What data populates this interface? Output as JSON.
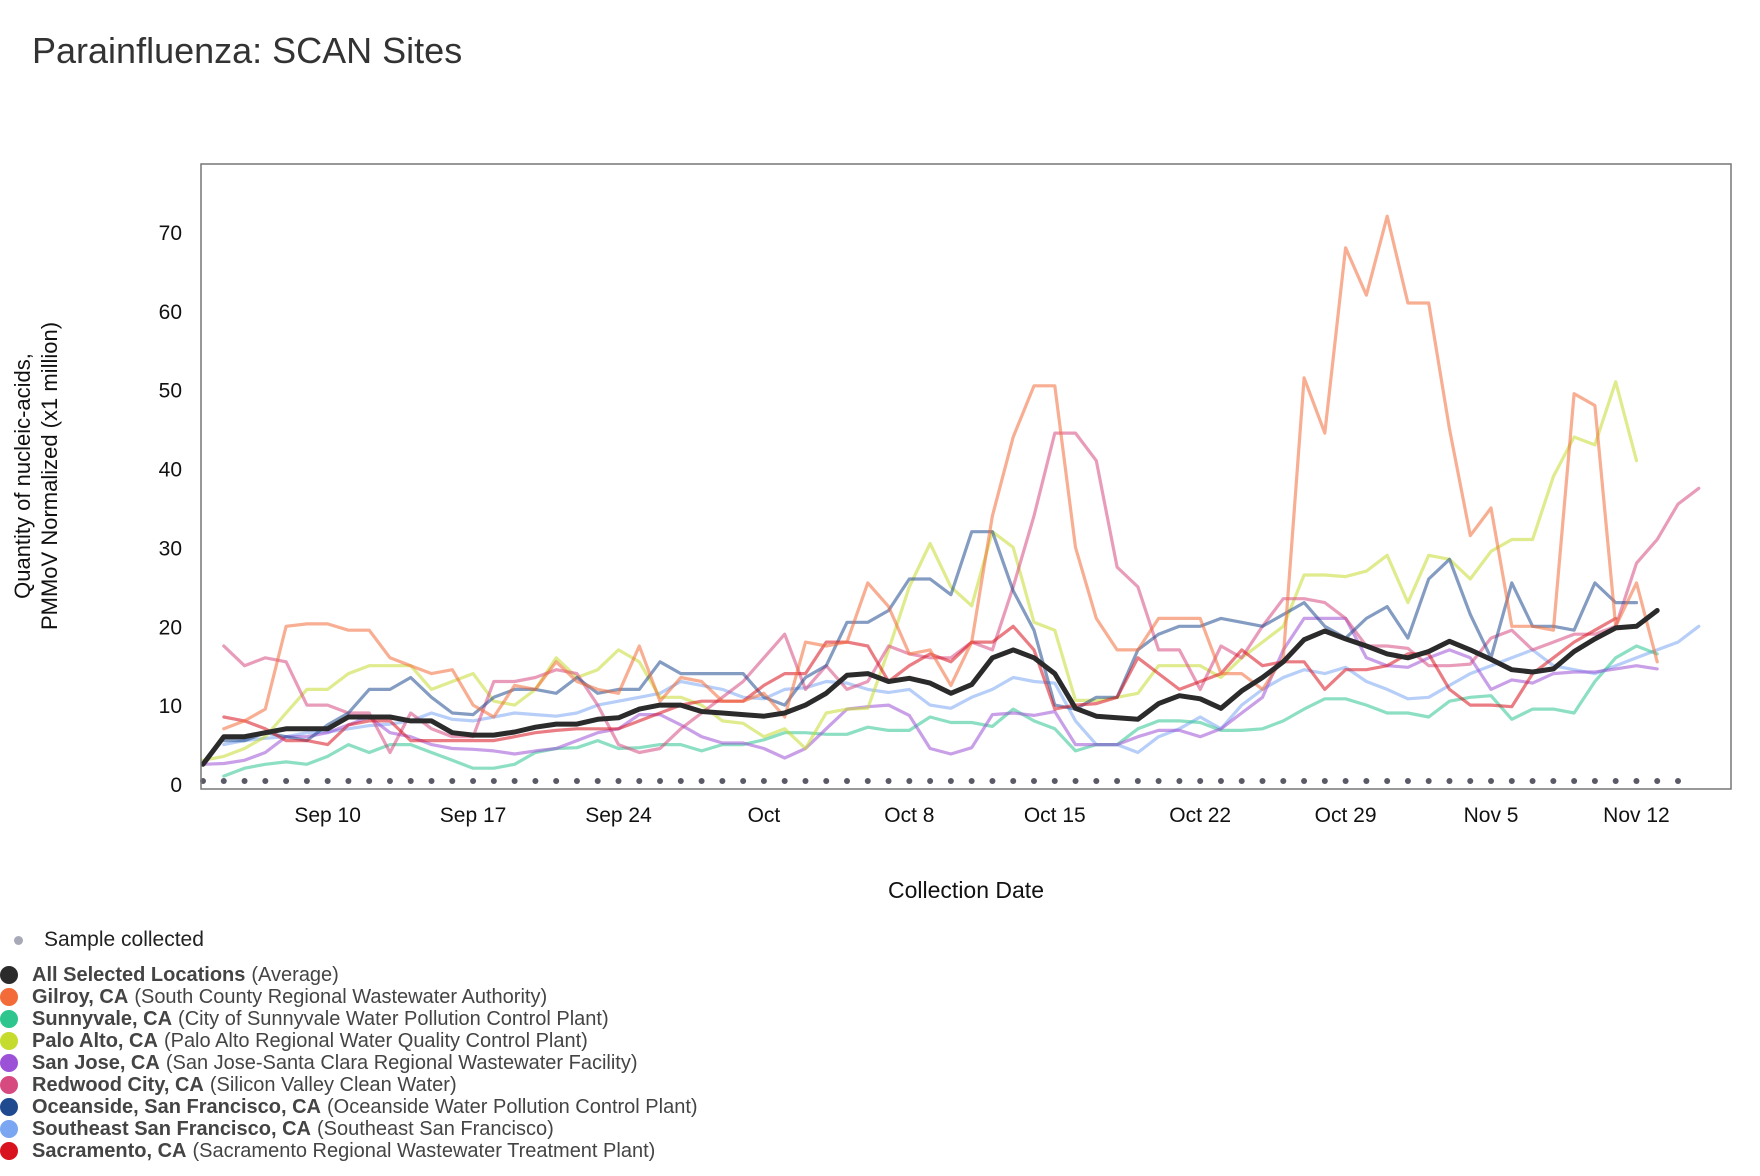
{
  "title": "Parainfluenza: SCAN Sites",
  "sample_legend": "Sample collected",
  "colors": {
    "avg": "#2b2b2b",
    "gilroy": "#f26b38",
    "sunnyvale": "#2ec58f",
    "paloalto": "#c5db2e",
    "sanjose": "#9c52d6",
    "redwood": "#d64a80",
    "oceanside": "#1f4a8f",
    "sesf": "#7aa6f2",
    "sacramento": "#d8121e",
    "sample": "#5a5a66"
  },
  "legend": [
    {
      "key": "avg",
      "name": "All Selected Locations",
      "sub": "(Average)"
    },
    {
      "key": "gilroy",
      "name": "Gilroy, CA",
      "sub": "(South County Regional Wastewater Authority)"
    },
    {
      "key": "sunnyvale",
      "name": "Sunnyvale, CA",
      "sub": "(City of Sunnyvale Water Pollution Control Plant)"
    },
    {
      "key": "paloalto",
      "name": "Palo Alto, CA",
      "sub": "(Palo Alto Regional Water Quality Control Plant)"
    },
    {
      "key": "sanjose",
      "name": "San Jose, CA",
      "sub": "(San Jose-Santa Clara Regional Wastewater Facility)"
    },
    {
      "key": "redwood",
      "name": "Redwood City, CA",
      "sub": "(Silicon Valley Clean Water)"
    },
    {
      "key": "oceanside",
      "name": "Oceanside, San Francisco, CA",
      "sub": "(Oceanside Water Pollution Control Plant)"
    },
    {
      "key": "sesf",
      "name": "Southeast San Francisco, CA",
      "sub": "(Southeast San Francisco)"
    },
    {
      "key": "sacramento",
      "name": "Sacramento, CA",
      "sub": "(Sacramento Regional Wastewater Treatment Plant)"
    }
  ],
  "chart_data": {
    "type": "line",
    "title": "Parainfluenza: SCAN Sites",
    "xlabel": "Collection Date",
    "ylabel_lines": [
      "Quantity of nucleic-acids,",
      "PMMoV Normalized (x1 million)"
    ],
    "x_start_date": "Sep 4",
    "xlim_days": [
      0,
      72
    ],
    "ylim": [
      0,
      78
    ],
    "yticks": [
      0,
      10,
      20,
      30,
      40,
      50,
      60,
      70
    ],
    "xticks": [
      {
        "day": 6,
        "label": "Sep 10"
      },
      {
        "day": 13,
        "label": "Sep 17"
      },
      {
        "day": 20,
        "label": "Sep 24"
      },
      {
        "day": 27,
        "label": "Oct"
      },
      {
        "day": 34,
        "label": "Oct 8"
      },
      {
        "day": 41,
        "label": "Oct 15"
      },
      {
        "day": 48,
        "label": "Oct 22"
      },
      {
        "day": 55,
        "label": "Oct 29"
      },
      {
        "day": 62,
        "label": "Nov 5"
      },
      {
        "day": 69,
        "label": "Nov 12"
      }
    ],
    "series": [
      {
        "key": "sesf",
        "name": "Southeast San Francisco, CA",
        "start": 1,
        "values": [
          5,
          5.5,
          5.8,
          6,
          6.5,
          6.6,
          7,
          7.4,
          7.6,
          8,
          9,
          8.2,
          8,
          8.5,
          9,
          8.8,
          8.6,
          9,
          10,
          10.5,
          11,
          11.5,
          13,
          12.5,
          12,
          11,
          10.8,
          12,
          12.2,
          13,
          12.8,
          12,
          11.6,
          12,
          10,
          9.6,
          11,
          12,
          13.5,
          13,
          12.8,
          8,
          5,
          5,
          4,
          6,
          7,
          8.5,
          7,
          10,
          12,
          13.5,
          14.5,
          14,
          14.8,
          13,
          12,
          10.8,
          11,
          12.5,
          14,
          15,
          16,
          17,
          15,
          14.5,
          14,
          15,
          16,
          17,
          18,
          20
        ]
      },
      {
        "key": "sunnyvale",
        "name": "Sunnyvale, CA",
        "start": 1,
        "values": [
          1,
          2,
          2.5,
          2.8,
          2.5,
          3.5,
          5,
          4,
          5,
          5,
          4,
          3,
          2,
          2,
          2.5,
          4,
          4.5,
          4.6,
          5.5,
          4.5,
          4.6,
          5,
          5,
          4.2,
          5,
          5,
          5.6,
          6.5,
          6.5,
          6.3,
          6.3,
          7.2,
          6.8,
          6.8,
          8.5,
          7.8,
          7.8,
          7.3,
          9.5,
          8,
          7,
          4.2,
          5,
          5,
          7,
          8,
          8,
          7.8,
          6.8,
          6.8,
          7,
          8,
          9.5,
          10.8,
          10.8,
          10,
          9,
          9,
          8.5,
          10.5,
          11,
          11.2,
          8.2,
          9.5,
          9.5,
          9,
          13,
          16,
          17.5,
          16.5
        ]
      },
      {
        "key": "sanjose",
        "name": "San Jose, CA",
        "start": 0,
        "values": [
          2.5,
          2.6,
          3,
          4,
          6,
          6,
          6.5,
          7.5,
          8.5,
          6.5,
          6,
          5,
          4.5,
          4.4,
          4.2,
          3.8,
          4.2,
          4.5,
          5.5,
          6.5,
          7,
          8.8,
          8.8,
          7.5,
          6,
          5.2,
          5.2,
          4.5,
          3.3,
          4.5,
          7,
          9.5,
          9.8,
          10,
          8.7,
          4.5,
          3.8,
          4.6,
          8.8,
          9,
          8.7,
          9.2,
          5,
          5,
          5,
          6,
          6.8,
          6.8,
          6,
          7,
          9,
          11,
          17,
          21,
          21,
          21,
          16,
          15,
          14.8,
          16,
          17,
          16,
          12,
          13.2,
          12.8,
          14,
          14.2,
          14.2,
          14.6,
          15,
          14.6
        ]
      },
      {
        "key": "paloalto",
        "name": "Palo Alto, CA",
        "start": 0,
        "values": [
          3,
          3.5,
          4.5,
          6,
          9,
          12,
          12,
          14,
          15,
          15,
          15,
          12,
          13,
          14,
          10.5,
          10,
          12,
          16,
          13.5,
          14.5,
          17,
          15.5,
          11,
          11,
          10,
          8,
          7.7,
          6,
          7,
          4.5,
          9,
          9.5,
          9.6,
          17,
          25,
          30.5,
          25,
          22.6,
          32,
          30,
          20.5,
          19.5,
          10.6,
          10.6,
          11,
          11.5,
          15,
          15,
          15,
          13.5,
          16,
          18,
          20,
          26.5,
          26.5,
          26.3,
          27,
          29,
          23,
          29,
          28.5,
          26,
          29.5,
          31,
          31,
          39,
          44,
          43,
          51,
          41
        ]
      },
      {
        "key": "redwood",
        "name": "Redwood City, CA",
        "start": 1,
        "values": [
          17.5,
          15,
          16,
          15.5,
          10,
          10,
          9,
          9,
          4,
          9,
          7,
          6,
          6,
          13,
          13,
          13.5,
          14.5,
          14,
          10,
          5,
          4,
          4.5,
          7,
          9,
          11,
          13,
          16,
          19,
          12,
          15,
          12,
          13,
          17.5,
          16.5,
          16,
          16,
          18,
          17,
          25,
          34,
          44.5,
          44.5,
          41,
          27.5,
          25,
          17,
          17,
          12,
          17.5,
          16,
          20,
          23.5,
          23.5,
          23,
          21,
          17.5,
          17.5,
          17.2,
          15,
          15,
          15.2,
          18.5,
          19.5,
          17,
          18,
          19,
          19,
          20,
          28,
          31,
          35.5,
          37.5
        ]
      },
      {
        "key": "oceanside",
        "name": "Oceanside, San Francisco, CA",
        "start": 1,
        "values": [
          5.5,
          5.5,
          6.5,
          6,
          5.5,
          7.5,
          9,
          12,
          12,
          13.5,
          11,
          9,
          8.8,
          11,
          12,
          12,
          11.5,
          13.5,
          11.5,
          12,
          12,
          15.5,
          14,
          14,
          14,
          14,
          11,
          10,
          13.5,
          15,
          20.5,
          20.5,
          22,
          26,
          26,
          24,
          32,
          32,
          24.5,
          19.5,
          10,
          9.5,
          11,
          11,
          17,
          19,
          20,
          20,
          21,
          20.5,
          20,
          21.5,
          23,
          20,
          18.5,
          21,
          22.5,
          18.5,
          26,
          28.5,
          21.5,
          16,
          25.5,
          20,
          20,
          19.5,
          25.5,
          23,
          23
        ]
      },
      {
        "key": "sacramento",
        "name": "Sacramento, CA",
        "start": 1,
        "values": [
          8.5,
          8,
          7,
          5.5,
          5.5,
          5,
          7.5,
          8,
          8,
          5.5,
          5.5,
          5.5,
          5.5,
          5.5,
          6,
          6.5,
          6.8,
          7,
          7,
          7,
          8,
          9,
          10,
          10.5,
          10.5,
          10.5,
          12.5,
          14,
          14,
          18,
          18,
          17.5,
          13,
          15,
          16.5,
          15.5,
          18,
          18,
          20,
          17,
          9.5,
          10,
          10.2,
          11,
          16,
          14,
          12,
          13,
          14,
          17,
          15,
          15.5,
          15.5,
          12,
          14.5,
          14.5,
          15,
          16.5,
          16.5,
          12,
          10,
          10,
          9.8,
          14,
          16,
          18,
          19.5,
          21
        ]
      },
      {
        "key": "gilroy",
        "name": "Gilroy, CA",
        "start": 1,
        "values": [
          7,
          8,
          9.5,
          20,
          20.3,
          20.3,
          19.5,
          19.5,
          16,
          15,
          14,
          14.5,
          10,
          8.5,
          12.5,
          12,
          15.5,
          13,
          12,
          11.5,
          17.5,
          10.5,
          13.5,
          13,
          10.5,
          10.5,
          11.5,
          8.5,
          18,
          17.5,
          18,
          25.5,
          22.5,
          16.5,
          17,
          12.5,
          18,
          34,
          44,
          50.5,
          50.5,
          30,
          21,
          17,
          17,
          21,
          21,
          21,
          14,
          14,
          12,
          16,
          51.5,
          44.5,
          68,
          62,
          72,
          61,
          61,
          45,
          31.5,
          35,
          20,
          20,
          19.5,
          49.5,
          48,
          20,
          25.5,
          15.5
        ]
      },
      {
        "key": "avg",
        "name": "All Selected Locations",
        "start": 0,
        "values": [
          2.5,
          6,
          6,
          6.5,
          7,
          7,
          7,
          8.5,
          8.5,
          8.5,
          8,
          8,
          6.5,
          6.2,
          6.2,
          6.6,
          7.2,
          7.6,
          7.6,
          8.2,
          8.4,
          9.5,
          10,
          10,
          9.2,
          9,
          8.8,
          8.6,
          9,
          10,
          11.5,
          13.8,
          14,
          13,
          13.4,
          12.8,
          11.5,
          12.6,
          16,
          17,
          16,
          14,
          9.6,
          8.6,
          8.4,
          8.2,
          10.2,
          11.2,
          10.8,
          9.6,
          11.8,
          13.5,
          15.5,
          18.3,
          19.4,
          18.4,
          17.5,
          16.5,
          16,
          16.8,
          18.1,
          17,
          15.8,
          14.5,
          14.2,
          14.6,
          16.8,
          18.4,
          19.8,
          20,
          22
        ]
      }
    ],
    "samples_days": [
      0,
      1,
      2,
      3,
      4,
      5,
      6,
      7,
      8,
      9,
      10,
      11,
      12,
      13,
      14,
      15,
      16,
      17,
      18,
      19,
      20,
      21,
      22,
      23,
      24,
      25,
      26,
      27,
      28,
      29,
      30,
      31,
      32,
      33,
      34,
      35,
      36,
      37,
      38,
      39,
      40,
      41,
      42,
      43,
      44,
      45,
      46,
      47,
      48,
      49,
      50,
      51,
      52,
      53,
      54,
      55,
      56,
      57,
      58,
      59,
      60,
      61,
      62,
      63,
      64,
      65,
      66,
      67,
      68,
      69,
      70,
      71
    ]
  }
}
